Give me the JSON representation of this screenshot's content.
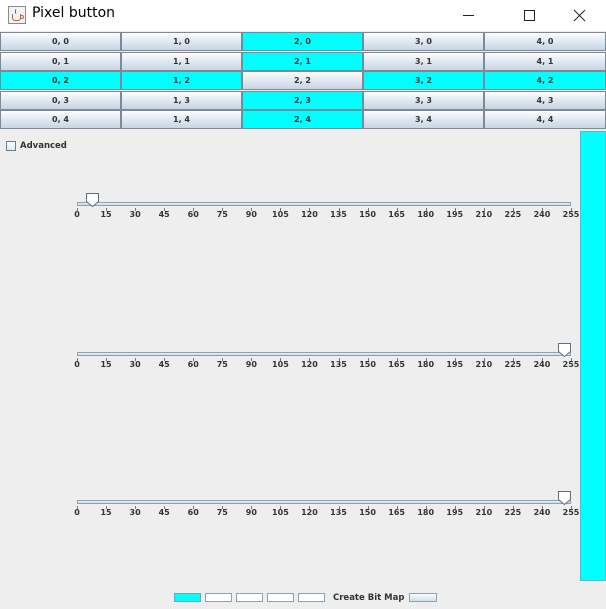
{
  "window": {
    "title": "Pixel button",
    "icon": "java-coffee-cup-icon",
    "controls": [
      "minimize-icon",
      "maximize-icon",
      "close-icon"
    ]
  },
  "grid": {
    "rows": [
      [
        {
          "label": "0, 0",
          "on": false
        },
        {
          "label": "1, 0",
          "on": false
        },
        {
          "label": "2, 0",
          "on": true
        },
        {
          "label": "3, 0",
          "on": false
        },
        {
          "label": "4, 0",
          "on": false
        }
      ],
      [
        {
          "label": "0, 1",
          "on": false
        },
        {
          "label": "1, 1",
          "on": false
        },
        {
          "label": "2, 1",
          "on": true
        },
        {
          "label": "3, 1",
          "on": false
        },
        {
          "label": "4, 1",
          "on": false
        }
      ],
      [
        {
          "label": "0, 2",
          "on": true
        },
        {
          "label": "1, 2",
          "on": true
        },
        {
          "label": "2, 2",
          "on": false
        },
        {
          "label": "3, 2",
          "on": true
        },
        {
          "label": "4, 2",
          "on": true
        }
      ],
      [
        {
          "label": "0, 3",
          "on": false
        },
        {
          "label": "1, 3",
          "on": false
        },
        {
          "label": "2, 3",
          "on": true
        },
        {
          "label": "3, 3",
          "on": false
        },
        {
          "label": "4, 3",
          "on": false
        }
      ],
      [
        {
          "label": "0, 4",
          "on": false
        },
        {
          "label": "1, 4",
          "on": false
        },
        {
          "label": "2, 4",
          "on": true
        },
        {
          "label": "3, 4",
          "on": false
        },
        {
          "label": "4, 4",
          "on": false
        }
      ]
    ],
    "active_color": "#00ffff"
  },
  "advanced": {
    "label": "Advanced",
    "checked": false
  },
  "sliders": [
    {
      "name": "slider-1",
      "value": 8
    },
    {
      "name": "slider-2",
      "value": 255
    },
    {
      "name": "slider-3",
      "value": 255
    }
  ],
  "slider_ticks": [
    "0",
    "15",
    "30",
    "45",
    "60",
    "75",
    "90",
    "105",
    "120",
    "135",
    "150",
    "165",
    "180",
    "195",
    "210",
    "225",
    "240",
    "255"
  ],
  "slider_max": 255,
  "preview_color": "#00ffff",
  "bottom": {
    "swatches": [
      {
        "on": true
      },
      {
        "on": false
      },
      {
        "on": false
      },
      {
        "on": false
      },
      {
        "on": false
      }
    ],
    "create_label": "Create Bit Map"
  }
}
